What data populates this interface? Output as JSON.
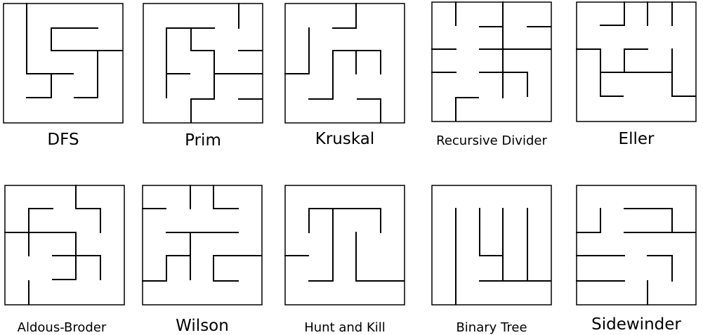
{
  "maze_color": "#000000",
  "mazes": [
    {
      "id": "dfs",
      "label": "DFS"
    },
    {
      "id": "prim",
      "label": "Prim"
    },
    {
      "id": "kruskal",
      "label": "Kruskal"
    },
    {
      "id": "recursive-divider",
      "label": "Recursive Divider"
    },
    {
      "id": "eller",
      "label": "Eller"
    },
    {
      "id": "aldous-broder",
      "label": "Aldous-Broder"
    },
    {
      "id": "wilson",
      "label": "Wilson"
    },
    {
      "id": "hunt-and-kill",
      "label": "Hunt and Kill"
    },
    {
      "id": "binary-tree",
      "label": "Binary Tree"
    },
    {
      "id": "sidewinder",
      "label": "Sidewinder"
    }
  ]
}
